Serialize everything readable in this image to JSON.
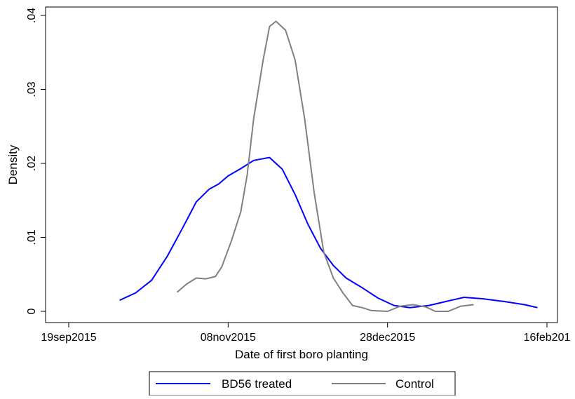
{
  "chart_data": {
    "type": "line",
    "title": "",
    "xlabel": "Date of first boro planting",
    "ylabel": "Density",
    "x_unit": "date",
    "xlim": [
      "2015-09-19",
      "2016-02-16"
    ],
    "ylim": [
      0,
      0.04
    ],
    "x_ticks": [
      {
        "date": "2015-09-19",
        "label": "19sep2015"
      },
      {
        "date": "2015-11-08",
        "label": "08nov2015"
      },
      {
        "date": "2015-12-28",
        "label": "28dec2015"
      },
      {
        "date": "2016-02-16",
        "label": "16feb201"
      }
    ],
    "y_ticks": [
      {
        "value": 0,
        "label": "0"
      },
      {
        "value": 0.01,
        "label": ".01"
      },
      {
        "value": 0.02,
        "label": ".02"
      },
      {
        "value": 0.03,
        "label": ".03"
      },
      {
        "value": 0.04,
        "label": ".04"
      }
    ],
    "grid": false,
    "legend_position": "bottom",
    "series": [
      {
        "name": "BD56 treated",
        "color": "#0000ff",
        "points": [
          [
            "2015-10-05",
            0.0015
          ],
          [
            "2015-10-10",
            0.0025
          ],
          [
            "2015-10-15",
            0.0042
          ],
          [
            "2015-10-20",
            0.0075
          ],
          [
            "2015-10-25",
            0.0115
          ],
          [
            "2015-10-29",
            0.0148
          ],
          [
            "2015-11-02",
            0.0165
          ],
          [
            "2015-11-05",
            0.0172
          ],
          [
            "2015-11-08",
            0.0183
          ],
          [
            "2015-11-12",
            0.0193
          ],
          [
            "2015-11-16",
            0.0204
          ],
          [
            "2015-11-21",
            0.0208
          ],
          [
            "2015-11-25",
            0.0192
          ],
          [
            "2015-11-29",
            0.0158
          ],
          [
            "2015-12-03",
            0.0118
          ],
          [
            "2015-12-07",
            0.0085
          ],
          [
            "2015-12-11",
            0.0062
          ],
          [
            "2015-12-15",
            0.0045
          ],
          [
            "2015-12-20",
            0.0032
          ],
          [
            "2015-12-25",
            0.0018
          ],
          [
            "2015-12-30",
            0.0008
          ],
          [
            "2016-01-04",
            0.0005
          ],
          [
            "2016-01-10",
            0.0008
          ],
          [
            "2016-01-16",
            0.0014
          ],
          [
            "2016-01-21",
            0.0019
          ],
          [
            "2016-01-27",
            0.0017
          ],
          [
            "2016-02-03",
            0.0013
          ],
          [
            "2016-02-09",
            0.0009
          ],
          [
            "2016-02-13",
            0.0005
          ]
        ]
      },
      {
        "name": "Control",
        "color": "#808080",
        "points": [
          [
            "2015-10-23",
            0.0026
          ],
          [
            "2015-10-26",
            0.0037
          ],
          [
            "2015-10-29",
            0.0045
          ],
          [
            "2015-11-01",
            0.0044
          ],
          [
            "2015-11-04",
            0.0047
          ],
          [
            "2015-11-06",
            0.006
          ],
          [
            "2015-11-09",
            0.0095
          ],
          [
            "2015-11-12",
            0.0135
          ],
          [
            "2015-11-14",
            0.0185
          ],
          [
            "2015-11-16",
            0.026
          ],
          [
            "2015-11-19",
            0.034
          ],
          [
            "2015-11-21",
            0.0385
          ],
          [
            "2015-11-23",
            0.0392
          ],
          [
            "2015-11-26",
            0.038
          ],
          [
            "2015-11-29",
            0.034
          ],
          [
            "2015-12-02",
            0.026
          ],
          [
            "2015-12-05",
            0.016
          ],
          [
            "2015-12-08",
            0.008
          ],
          [
            "2015-12-11",
            0.0045
          ],
          [
            "2015-12-14",
            0.0025
          ],
          [
            "2015-12-17",
            0.0008
          ],
          [
            "2015-12-20",
            0.0005
          ],
          [
            "2015-12-23",
            0.0001
          ],
          [
            "2015-12-28",
            0.0
          ],
          [
            "2016-01-01",
            0.0007
          ],
          [
            "2016-01-05",
            0.0009
          ],
          [
            "2016-01-09",
            0.0006
          ],
          [
            "2016-01-12",
            0.0
          ],
          [
            "2016-01-16",
            0.0
          ],
          [
            "2016-01-20",
            0.0007
          ],
          [
            "2016-01-24",
            0.0009
          ]
        ]
      }
    ]
  }
}
